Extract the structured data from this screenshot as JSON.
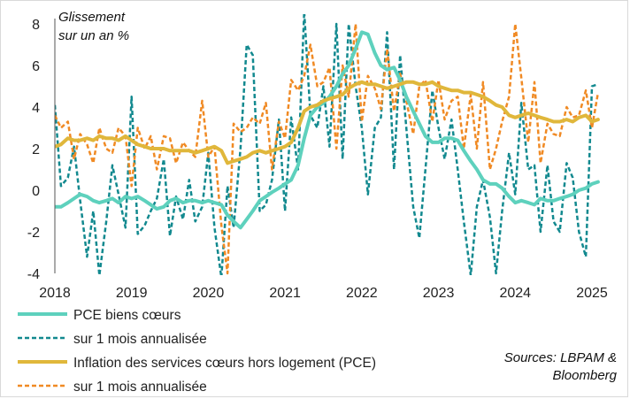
{
  "chart_data": {
    "type": "line",
    "title_lines": [
      "Glissement",
      "sur un an %"
    ],
    "source_lines": [
      "Sources: LBPAM &",
      "Bloomberg"
    ],
    "ylim": [
      -4,
      8
    ],
    "yticks": [
      "-4",
      "-2",
      "0",
      "2",
      "4",
      "6",
      "8"
    ],
    "xlim": [
      2018,
      2025.2
    ],
    "xticks": [
      "2018",
      "2019",
      "2020",
      "2021",
      "2022",
      "2023",
      "2024",
      "2025"
    ],
    "colors": {
      "teal": "#5ed1bd",
      "teal_dark": "#12898f",
      "gold": "#e0b73b",
      "orange": "#f08a24"
    },
    "series": [
      {
        "name": "PCE biens cœurs",
        "style": "solid",
        "color": "#5ed1bd",
        "width": 4,
        "x": [
          2018.0,
          2018.08,
          2018.17,
          2018.25,
          2018.33,
          2018.42,
          2018.5,
          2018.58,
          2018.67,
          2018.75,
          2018.83,
          2018.92,
          2019.0,
          2019.08,
          2019.17,
          2019.25,
          2019.33,
          2019.42,
          2019.5,
          2019.58,
          2019.67,
          2019.75,
          2019.83,
          2019.92,
          2020.0,
          2020.08,
          2020.17,
          2020.25,
          2020.33,
          2020.42,
          2020.5,
          2020.58,
          2020.67,
          2020.75,
          2020.83,
          2020.92,
          2021.0,
          2021.08,
          2021.17,
          2021.25,
          2021.33,
          2021.42,
          2021.5,
          2021.58,
          2021.67,
          2021.75,
          2021.83,
          2021.92,
          2022.0,
          2022.08,
          2022.17,
          2022.25,
          2022.33,
          2022.42,
          2022.5,
          2022.58,
          2022.67,
          2022.75,
          2022.83,
          2022.92,
          2023.0,
          2023.08,
          2023.17,
          2023.25,
          2023.33,
          2023.42,
          2023.5,
          2023.58,
          2023.67,
          2023.75,
          2023.83,
          2023.92,
          2024.0,
          2024.08,
          2024.17,
          2024.25,
          2024.33,
          2024.42,
          2024.5,
          2024.58,
          2024.67,
          2024.75,
          2024.83,
          2024.92,
          2025.0,
          2025.08
        ],
        "values": [
          -0.8,
          -0.8,
          -0.6,
          -0.4,
          -0.2,
          -0.3,
          -0.5,
          -0.6,
          -0.5,
          -0.4,
          -0.6,
          -0.3,
          -0.4,
          -0.3,
          -0.5,
          -0.7,
          -0.9,
          -0.8,
          -0.5,
          -0.4,
          -0.6,
          -0.5,
          -0.5,
          -0.6,
          -0.5,
          -0.6,
          -0.7,
          -1.2,
          -1.5,
          -1.8,
          -1.4,
          -1.0,
          -0.5,
          -0.3,
          -0.1,
          0.1,
          0.3,
          0.5,
          1.2,
          2.5,
          3.6,
          4.0,
          4.2,
          4.5,
          5.0,
          5.6,
          6.0,
          6.8,
          7.6,
          7.5,
          6.6,
          6.0,
          5.8,
          5.9,
          5.3,
          4.5,
          3.8,
          3.2,
          2.6,
          2.3,
          2.3,
          2.5,
          2.5,
          2.4,
          1.9,
          1.4,
          1.0,
          0.5,
          0.3,
          0.3,
          0.1,
          -0.3,
          -0.6,
          -0.5,
          -0.6,
          -0.7,
          -0.4,
          -0.5,
          -0.5,
          -0.4,
          -0.3,
          -0.2,
          0.0,
          0.1,
          0.3,
          0.4
        ]
      },
      {
        "name": "sur 1 mois annualisée",
        "style": "dashed",
        "color": "#12898f",
        "width": 2.5,
        "x": [
          2018.0,
          2018.08,
          2018.17,
          2018.25,
          2018.33,
          2018.42,
          2018.5,
          2018.58,
          2018.67,
          2018.75,
          2018.83,
          2018.92,
          2019.0,
          2019.08,
          2019.17,
          2019.25,
          2019.33,
          2019.42,
          2019.5,
          2019.58,
          2019.67,
          2019.75,
          2019.83,
          2019.92,
          2020.0,
          2020.08,
          2020.17,
          2020.25,
          2020.33,
          2020.42,
          2020.5,
          2020.58,
          2020.67,
          2020.75,
          2020.83,
          2020.92,
          2021.0,
          2021.08,
          2021.17,
          2021.25,
          2021.33,
          2021.42,
          2021.5,
          2021.58,
          2021.67,
          2021.75,
          2021.83,
          2021.92,
          2022.0,
          2022.08,
          2022.17,
          2022.25,
          2022.33,
          2022.42,
          2022.5,
          2022.58,
          2022.67,
          2022.75,
          2022.83,
          2022.92,
          2023.0,
          2023.08,
          2023.17,
          2023.25,
          2023.33,
          2023.42,
          2023.5,
          2023.58,
          2023.67,
          2023.75,
          2023.83,
          2023.92,
          2024.0,
          2024.08,
          2024.17,
          2024.25,
          2024.33,
          2024.42,
          2024.5,
          2024.58,
          2024.67,
          2024.75,
          2024.83,
          2024.92,
          2025.0,
          2025.08
        ],
        "values": [
          4.1,
          0.2,
          0.6,
          2.1,
          -0.5,
          -3.2,
          -1.0,
          -4.1,
          -1.5,
          1.2,
          -0.2,
          -1.8,
          4.5,
          -2.1,
          -1.7,
          -1.0,
          -0.4,
          1.5,
          -2.2,
          -0.3,
          -1.4,
          0.5,
          -1.5,
          -0.8,
          1.8,
          -1.8,
          -4.2,
          0.2,
          -1.8,
          2.0,
          7.0,
          6.5,
          -1.0,
          -0.7,
          0.5,
          3.4,
          -1.0,
          3.5,
          1.0,
          8.6,
          3.6,
          3.0,
          5.0,
          2.1,
          8.0,
          1.5,
          8.0,
          5.0,
          3.0,
          -0.2,
          3.0,
          3.5,
          7.6,
          1.0,
          6.5,
          3.0,
          -0.8,
          -2.3,
          1.0,
          4.8,
          3.0,
          1.5,
          3.4,
          1.0,
          -1.5,
          -4.1,
          -0.8,
          0.5,
          -1.3,
          -4.0,
          -1.0,
          1.8,
          -0.2,
          4.2,
          1.0,
          1.2,
          -2.0,
          1.2,
          -1.5,
          -2.0,
          1.3,
          0.6,
          -2.0,
          -3.2,
          5.0,
          5.1
        ]
      },
      {
        "name": "Inflation des services cœurs hors logement (PCE)",
        "style": "solid",
        "color": "#e0b73b",
        "width": 4,
        "x": [
          2018.0,
          2018.08,
          2018.17,
          2018.25,
          2018.33,
          2018.42,
          2018.5,
          2018.58,
          2018.67,
          2018.75,
          2018.83,
          2018.92,
          2019.0,
          2019.08,
          2019.17,
          2019.25,
          2019.33,
          2019.42,
          2019.5,
          2019.58,
          2019.67,
          2019.75,
          2019.83,
          2019.92,
          2020.0,
          2020.08,
          2020.17,
          2020.25,
          2020.33,
          2020.42,
          2020.5,
          2020.58,
          2020.67,
          2020.75,
          2020.83,
          2020.92,
          2021.0,
          2021.08,
          2021.17,
          2021.25,
          2021.33,
          2021.42,
          2021.5,
          2021.58,
          2021.67,
          2021.75,
          2021.83,
          2021.92,
          2022.0,
          2022.08,
          2022.17,
          2022.25,
          2022.33,
          2022.42,
          2022.5,
          2022.58,
          2022.67,
          2022.75,
          2022.83,
          2022.92,
          2023.0,
          2023.08,
          2023.17,
          2023.25,
          2023.33,
          2023.42,
          2023.5,
          2023.58,
          2023.67,
          2023.75,
          2023.83,
          2023.92,
          2024.0,
          2024.08,
          2024.17,
          2024.25,
          2024.33,
          2024.42,
          2024.5,
          2024.58,
          2024.67,
          2024.75,
          2024.83,
          2024.92,
          2025.0,
          2025.08
        ],
        "values": [
          2.1,
          2.2,
          2.5,
          2.4,
          2.4,
          2.5,
          2.4,
          2.6,
          2.5,
          2.5,
          2.4,
          2.6,
          2.4,
          2.2,
          2.1,
          2.0,
          2.0,
          2.0,
          1.9,
          1.9,
          1.9,
          1.9,
          1.8,
          1.9,
          2.0,
          2.1,
          1.9,
          1.3,
          1.4,
          1.5,
          1.6,
          1.8,
          1.9,
          1.8,
          1.9,
          2.0,
          2.1,
          2.3,
          3.0,
          3.8,
          4.0,
          4.1,
          4.3,
          4.4,
          4.5,
          4.6,
          4.9,
          5.1,
          5.2,
          5.1,
          5.1,
          5.0,
          4.9,
          5.0,
          5.1,
          5.2,
          5.2,
          5.1,
          5.1,
          5.2,
          5.0,
          4.9,
          4.8,
          4.8,
          4.7,
          4.7,
          4.6,
          4.5,
          4.3,
          4.1,
          4.0,
          3.6,
          3.5,
          3.6,
          3.7,
          3.6,
          3.5,
          3.4,
          3.3,
          3.3,
          3.4,
          3.3,
          3.5,
          3.6,
          3.3,
          3.4
        ]
      },
      {
        "name": "sur 1 mois annualisée",
        "style": "dashed",
        "color": "#f08a24",
        "width": 2.5,
        "x": [
          2018.0,
          2018.08,
          2018.17,
          2018.25,
          2018.33,
          2018.42,
          2018.5,
          2018.58,
          2018.67,
          2018.75,
          2018.83,
          2018.92,
          2019.0,
          2019.08,
          2019.17,
          2019.25,
          2019.33,
          2019.42,
          2019.5,
          2019.58,
          2019.67,
          2019.75,
          2019.83,
          2019.92,
          2020.0,
          2020.08,
          2020.17,
          2020.25,
          2020.33,
          2020.42,
          2020.5,
          2020.58,
          2020.67,
          2020.75,
          2020.83,
          2020.92,
          2021.0,
          2021.08,
          2021.17,
          2021.25,
          2021.33,
          2021.42,
          2021.5,
          2021.58,
          2021.67,
          2021.75,
          2021.83,
          2021.92,
          2022.0,
          2022.08,
          2022.17,
          2022.25,
          2022.33,
          2022.42,
          2022.5,
          2022.58,
          2022.67,
          2022.75,
          2022.83,
          2022.92,
          2023.0,
          2023.08,
          2023.17,
          2023.25,
          2023.33,
          2023.42,
          2023.5,
          2023.58,
          2023.67,
          2023.75,
          2023.83,
          2023.92,
          2024.0,
          2024.08,
          2024.17,
          2024.25,
          2024.33,
          2024.42,
          2024.5,
          2024.58,
          2024.67,
          2024.75,
          2024.83,
          2024.92,
          2025.0,
          2025.08
        ],
        "values": [
          3.6,
          3.0,
          3.3,
          1.5,
          2.7,
          2.2,
          1.3,
          3.0,
          2.0,
          1.8,
          3.0,
          2.6,
          0.2,
          3.0,
          2.0,
          2.6,
          1.0,
          2.6,
          2.5,
          1.3,
          2.3,
          1.9,
          1.6,
          4.3,
          1.6,
          2.1,
          -1.7,
          -4.0,
          3.2,
          2.8,
          3.0,
          3.5,
          3.2,
          4.2,
          1.0,
          3.3,
          2.5,
          5.3,
          4.8,
          5.5,
          7.0,
          5.0,
          5.2,
          5.9,
          2.0,
          6.0,
          4.5,
          8.0,
          3.3,
          5.5,
          4.9,
          3.9,
          6.8,
          3.8,
          5.6,
          4.3,
          2.7,
          5.0,
          5.3,
          3.3,
          5.3,
          3.4,
          4.3,
          4.5,
          2.0,
          4.6,
          2.0,
          5.2,
          1.0,
          2.0,
          3.3,
          4.5,
          8.0,
          5.4,
          2.3,
          5.2,
          1.3,
          3.2,
          2.7,
          2.6,
          4.0,
          3.5,
          3.6,
          4.8,
          3.0,
          4.7
        ]
      }
    ]
  },
  "legend": {
    "item1": "PCE biens cœurs",
    "item2": "sur 1 mois annualisée",
    "item3": "Inflation des services cœurs hors logement (PCE)",
    "item4": "sur 1 mois annualisée"
  }
}
